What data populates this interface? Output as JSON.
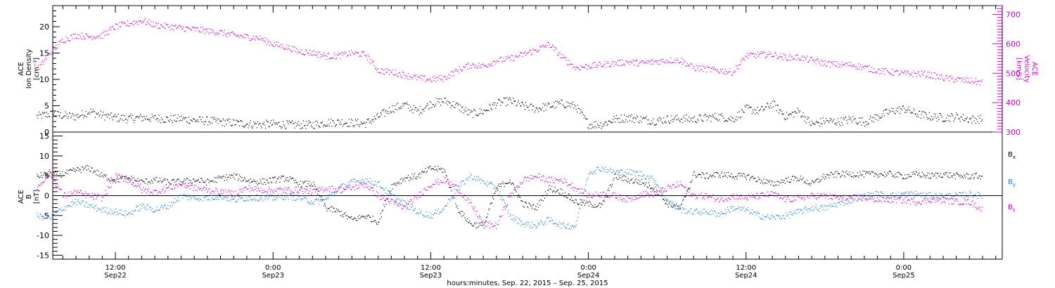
{
  "figure": {
    "xaxis_caption": "hours:minutes, Sep. 22, 2015 – Sep. 25, 2015",
    "colors": {
      "axis": "#000000",
      "density": "#000000",
      "velocity": "#cc00cc",
      "bx": "#000000",
      "by": "#1e7fd6",
      "bz": "#cc00cc"
    }
  },
  "chart_data": [
    {
      "type": "scatter",
      "panel": "top",
      "ylabel_left": [
        "ACE",
        "Ion Density",
        "[cm⁻³]"
      ],
      "ylabel_right": [
        "ACE",
        "Velocity",
        "[km/s]"
      ],
      "ylim_left": [
        0,
        24
      ],
      "ylim_right": [
        300,
        730
      ],
      "xlim_hours": [
        0,
        72
      ],
      "left_ticks": [
        "0",
        "5",
        "10",
        "15",
        "20"
      ],
      "right_ticks": [
        "300",
        "400",
        "500",
        "600",
        "700"
      ],
      "x_tick_labels": [
        {
          "hours": 6,
          "time": "12:00",
          "date": "Sep22"
        },
        {
          "hours": 18,
          "time": "0:00",
          "date": "Sep23"
        },
        {
          "hours": 30,
          "time": "12:00",
          "date": "Sep23"
        },
        {
          "hours": 42,
          "time": "0:00",
          "date": "Sep24"
        },
        {
          "hours": 54,
          "time": "12:00",
          "date": "Sep24"
        },
        {
          "hours": 66,
          "time": "0:00",
          "date": "Sep25"
        }
      ],
      "series": [
        {
          "axis": "left",
          "x": [
            0,
            1,
            2,
            3,
            4,
            5,
            6,
            7,
            8,
            9,
            10,
            11,
            12,
            13,
            14,
            15,
            16,
            17,
            18,
            19,
            20,
            21,
            22,
            23,
            24,
            25,
            26,
            27,
            28,
            29,
            30,
            31,
            32,
            33,
            34,
            35,
            36,
            37,
            38,
            39,
            40,
            41,
            42,
            43,
            44,
            45,
            46,
            47,
            48,
            49,
            50,
            51,
            52,
            53,
            54,
            55,
            56,
            57,
            58,
            59,
            60,
            61,
            62,
            63,
            64,
            65,
            66,
            67,
            68,
            69,
            70,
            71,
            72
          ],
          "values": [
            3.0,
            3.5,
            3.2,
            3.0,
            4.0,
            3.2,
            2.8,
            2.6,
            2.8,
            2.7,
            2.5,
            2.6,
            2.3,
            2.2,
            2.0,
            1.8,
            1.6,
            1.5,
            1.6,
            1.5,
            1.4,
            1.5,
            1.8,
            2.0,
            1.8,
            1.7,
            3.0,
            4.5,
            5.2,
            4.0,
            5.5,
            6.0,
            5.0,
            3.5,
            4.0,
            5.5,
            6.0,
            5.0,
            4.5,
            5.0,
            5.5,
            5.0,
            1.5,
            1.5,
            2.5,
            2.8,
            2.5,
            2.2,
            2.5,
            2.6,
            2.5,
            2.8,
            3.0,
            2.5,
            4.5,
            4.0,
            5.5,
            3.0,
            4.0,
            1.5,
            2.2,
            2.0,
            2.5,
            2.0,
            3.0,
            4.0,
            4.5,
            3.5,
            3.0,
            2.8,
            3.0,
            2.5,
            2.5
          ]
        },
        {
          "axis": "right",
          "x": [
            0,
            1,
            2,
            3,
            4,
            5,
            6,
            7,
            8,
            9,
            10,
            11,
            12,
            13,
            14,
            15,
            16,
            17,
            18,
            19,
            20,
            21,
            22,
            23,
            24,
            25,
            26,
            27,
            28,
            29,
            30,
            31,
            32,
            33,
            34,
            35,
            36,
            37,
            38,
            39,
            40,
            41,
            42,
            43,
            44,
            45,
            46,
            47,
            48,
            49,
            50,
            51,
            52,
            53,
            54,
            55,
            56,
            57,
            58,
            59,
            60,
            61,
            62,
            63,
            64,
            65,
            66,
            67,
            68,
            69,
            70,
            71,
            72
          ],
          "values": [
            510,
            570,
            615,
            630,
            625,
            630,
            660,
            670,
            680,
            665,
            660,
            655,
            650,
            645,
            640,
            630,
            625,
            620,
            600,
            590,
            575,
            570,
            560,
            560,
            570,
            565,
            510,
            505,
            495,
            485,
            480,
            485,
            510,
            530,
            525,
            545,
            550,
            565,
            580,
            600,
            555,
            520,
            525,
            530,
            535,
            540,
            535,
            540,
            545,
            545,
            520,
            515,
            510,
            505,
            560,
            565,
            565,
            555,
            555,
            545,
            535,
            530,
            530,
            520,
            510,
            505,
            500,
            500,
            495,
            485,
            480,
            475,
            470
          ]
        }
      ]
    },
    {
      "type": "scatter",
      "panel": "bottom",
      "ylabel_left": [
        "ACE",
        "B",
        "[nT]"
      ],
      "ylim": [
        -16,
        16
      ],
      "xlim_hours": [
        0,
        72
      ],
      "left_ticks": [
        "-15",
        "-10",
        "-5",
        "0",
        "5",
        "10",
        "15"
      ],
      "legend_position": "right",
      "series": [
        {
          "name": "Bx",
          "x": [
            0,
            1,
            2,
            3,
            4,
            5,
            6,
            7,
            8,
            9,
            10,
            11,
            12,
            13,
            14,
            15,
            16,
            17,
            18,
            19,
            20,
            21,
            22,
            23,
            24,
            25,
            26,
            27,
            28,
            29,
            30,
            31,
            32,
            33,
            34,
            35,
            36,
            37,
            38,
            39,
            40,
            41,
            42,
            43,
            44,
            45,
            46,
            47,
            48,
            49,
            50,
            51,
            52,
            53,
            54,
            55,
            56,
            57,
            58,
            59,
            60,
            61,
            62,
            63,
            64,
            65,
            66,
            67,
            68,
            69,
            70,
            71,
            72
          ],
          "values": [
            5.0,
            5.5,
            5.5,
            6.5,
            7.0,
            5.0,
            4.0,
            4.5,
            3.5,
            4.0,
            3.5,
            3.5,
            4.0,
            3.5,
            4.5,
            5.0,
            4.0,
            3.5,
            4.0,
            4.5,
            3.0,
            3.0,
            -3.0,
            -4.0,
            -6.0,
            -5.0,
            -6.5,
            2.5,
            4.5,
            5.0,
            7.0,
            6.5,
            -3.0,
            -7.0,
            -7.5,
            2.0,
            4.0,
            -2.0,
            -3.0,
            2.0,
            1.0,
            -1.5,
            -2.0,
            -2.5,
            5.0,
            4.0,
            3.5,
            2.0,
            -2.0,
            -3.0,
            5.5,
            5.0,
            5.5,
            5.0,
            5.0,
            4.0,
            3.0,
            4.0,
            4.5,
            3.0,
            5.0,
            5.5,
            5.5,
            5.5,
            5.5,
            5.5,
            5.0,
            5.5,
            5.0,
            5.5,
            5.0,
            5.0,
            5.0
          ]
        },
        {
          "name": "By",
          "x": [
            0,
            1,
            2,
            3,
            4,
            5,
            6,
            7,
            8,
            9,
            10,
            11,
            12,
            13,
            14,
            15,
            16,
            17,
            18,
            19,
            20,
            21,
            22,
            23,
            24,
            25,
            26,
            27,
            28,
            29,
            30,
            31,
            32,
            33,
            34,
            35,
            36,
            37,
            38,
            39,
            40,
            41,
            42,
            43,
            44,
            45,
            46,
            47,
            48,
            49,
            50,
            51,
            52,
            53,
            54,
            55,
            56,
            57,
            58,
            59,
            60,
            61,
            62,
            63,
            64,
            65,
            66,
            67,
            68,
            69,
            70,
            71,
            72
          ],
          "values": [
            -5.0,
            -5.5,
            -3.0,
            -1.5,
            -2.5,
            -3.5,
            -4.0,
            -4.5,
            -2.5,
            -3.5,
            -2.5,
            0.0,
            -0.5,
            -0.5,
            0.0,
            -1.0,
            -0.5,
            -0.5,
            -0.5,
            0.0,
            -0.5,
            -1.5,
            -1.0,
            2.0,
            3.5,
            4.0,
            3.0,
            0.0,
            -2.0,
            -4.0,
            -5.0,
            -3.0,
            2.0,
            5.0,
            3.5,
            2.0,
            -5.0,
            -7.0,
            -7.5,
            -6.0,
            -7.5,
            -7.5,
            6.0,
            7.0,
            6.0,
            6.0,
            5.5,
            4.0,
            -1.0,
            -3.5,
            -4.0,
            -4.0,
            -4.5,
            -3.0,
            -3.5,
            -5.0,
            -5.5,
            -5.0,
            -4.0,
            -3.0,
            -3.0,
            -2.0,
            -1.0,
            0.0,
            0.5,
            0.0,
            0.5,
            0.5,
            0.0,
            0.0,
            0.0,
            0.5,
            0.0
          ]
        },
        {
          "name": "Bz",
          "x": [
            0,
            1,
            2,
            3,
            4,
            5,
            6,
            7,
            8,
            9,
            10,
            11,
            12,
            13,
            14,
            15,
            16,
            17,
            18,
            19,
            20,
            21,
            22,
            23,
            24,
            25,
            26,
            27,
            28,
            29,
            30,
            31,
            32,
            33,
            34,
            35,
            36,
            37,
            38,
            39,
            40,
            41,
            42,
            43,
            44,
            45,
            46,
            47,
            48,
            49,
            50,
            51,
            52,
            53,
            54,
            55,
            56,
            57,
            58,
            59,
            60,
            61,
            62,
            63,
            64,
            65,
            66,
            67,
            68,
            69,
            70,
            71,
            72
          ],
          "values": [
            2.0,
            6.0,
            0.0,
            1.0,
            0.0,
            -0.5,
            5.0,
            4.0,
            1.5,
            1.0,
            2.0,
            3.0,
            2.0,
            1.5,
            1.0,
            0.5,
            2.0,
            1.5,
            1.5,
            1.5,
            1.5,
            1.0,
            2.0,
            1.5,
            2.0,
            3.0,
            0.0,
            -1.5,
            -3.0,
            0.0,
            3.0,
            4.0,
            2.0,
            -2.0,
            -7.0,
            -7.5,
            0.0,
            4.0,
            5.0,
            4.0,
            4.0,
            2.0,
            0.0,
            0.5,
            0.0,
            -1.0,
            0.5,
            0.5,
            2.0,
            3.0,
            0.0,
            0.0,
            -1.0,
            0.0,
            -0.5,
            0.0,
            0.5,
            -1.0,
            -0.5,
            0.0,
            0.0,
            -0.5,
            -0.5,
            -0.5,
            -1.0,
            -1.0,
            -1.0,
            -1.5,
            -1.0,
            -1.0,
            -1.5,
            -1.5,
            -3.5
          ]
        }
      ]
    }
  ]
}
